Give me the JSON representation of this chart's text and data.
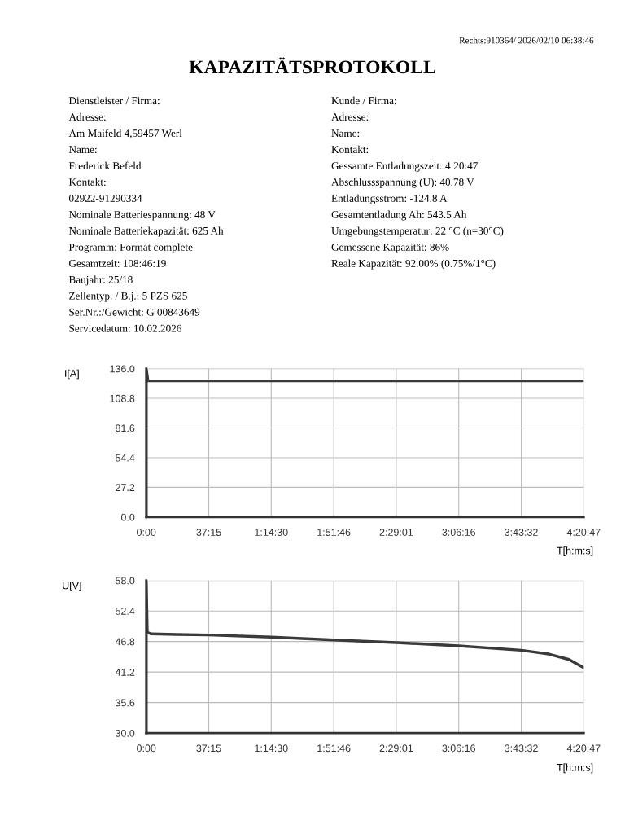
{
  "chart_data": [
    {
      "type": "line",
      "title": "KAPAZITÄTSPROTOKOLL",
      "subtitle": "Rechts:910364/ 2026/02/10 06:38:46",
      "ylabel": "I[A]",
      "xlabel": "T[h:m:s]",
      "annotations": [
        "Dienstleister / Firma:",
        "Adresse:",
        "Am Maifeld 4,59457 Werl",
        "Name:",
        "Frederick Befeld",
        "Kontakt:",
        "02922-91290334",
        "Nominale Batteriespannung: 48 V",
        "Nominale Batteriekapazität: 625 Ah",
        "Programm: Format complete",
        "Gesamtzeit: 108:46:19",
        "Baujahr: 25/18",
        "Zellentyp. / B.j.: 5 PZS 625",
        "Ser.Nr.:/Gewicht: G 00843649",
        "Servicedatum: 10.02.2026"
      ],
      "series": [
        {
          "color": "#3a3a3a",
          "x": [
            0,
            0,
            1,
            260.7833
          ],
          "values": [
            0,
            136,
            124.8,
            124.8
          ]
        }
      ],
      "xlim": [
        0,
        260.7833
      ],
      "ylim": [
        0,
        136
      ],
      "xticks": [
        {
          "value": 0,
          "label": "0:00"
        },
        {
          "value": 37.25,
          "label": "37:15"
        },
        {
          "value": 74.5,
          "label": "1:14:30"
        },
        {
          "value": 111.7667,
          "label": "1:51:46"
        },
        {
          "value": 149.0167,
          "label": "2:29:01"
        },
        {
          "value": 186.2667,
          "label": "3:06:16"
        },
        {
          "value": 223.5333,
          "label": "3:43:32"
        },
        {
          "value": 260.7833,
          "label": "4:20:47"
        }
      ],
      "yticks": [
        {
          "value": 0,
          "label": "0.0"
        },
        {
          "value": 27.2,
          "label": "27.2"
        },
        {
          "value": 54.4,
          "label": "54.4"
        },
        {
          "value": 81.6,
          "label": "81.6"
        },
        {
          "value": 108.8,
          "label": "108.8"
        },
        {
          "value": 136,
          "label": "136.0"
        }
      ],
      "grid": true,
      "line_style": "solid"
    },
    {
      "type": "line",
      "ylabel": "U[V]",
      "xlabel": "T[h:m:s]",
      "annotations": [
        "Kunde / Firma:",
        "Adresse:",
        "Name:",
        "Kontakt:",
        "Gessamte Entladungszeit: 4:20:47",
        "Abschlussspannung (U): 40.78 V",
        "Entladungsstrom: -124.8 A",
        "Gesamtentladung Ah: 543.5 Ah",
        "Umgebungstemperatur: 22 °C (n=30°C)",
        "Gemessene Kapazität: 86%",
        "Reale Kapazität: 92.00% (0.75%/1°C)"
      ],
      "series": [
        {
          "color": "#3a3a3a",
          "x": [
            0,
            0,
            0.6,
            3,
            18,
            37.25,
            74.5,
            111.77,
            149.02,
            186.27,
            223.53,
            240,
            252,
            260.7833
          ],
          "values": [
            30,
            58,
            48.5,
            48.2,
            48.1,
            48.0,
            47.6,
            47.1,
            46.6,
            46.0,
            45.2,
            44.5,
            43.5,
            42.0
          ]
        }
      ],
      "xlim": [
        0,
        260.7833
      ],
      "ylim": [
        30,
        58
      ],
      "xticks": [
        {
          "value": 0,
          "label": "0:00"
        },
        {
          "value": 37.25,
          "label": "37:15"
        },
        {
          "value": 74.5,
          "label": "1:14:30"
        },
        {
          "value": 111.7667,
          "label": "1:51:46"
        },
        {
          "value": 149.0167,
          "label": "2:29:01"
        },
        {
          "value": 186.2667,
          "label": "3:06:16"
        },
        {
          "value": 223.5333,
          "label": "3:43:32"
        },
        {
          "value": 260.7833,
          "label": "4:20:47"
        }
      ],
      "yticks": [
        {
          "value": 30,
          "label": "30.0"
        },
        {
          "value": 35.6,
          "label": "35.6"
        },
        {
          "value": 41.2,
          "label": "41.2"
        },
        {
          "value": 46.8,
          "label": "46.8"
        },
        {
          "value": 52.4,
          "label": "52.4"
        },
        {
          "value": 58,
          "label": "58.0"
        }
      ],
      "grid": true,
      "line_style": "solid"
    }
  ]
}
